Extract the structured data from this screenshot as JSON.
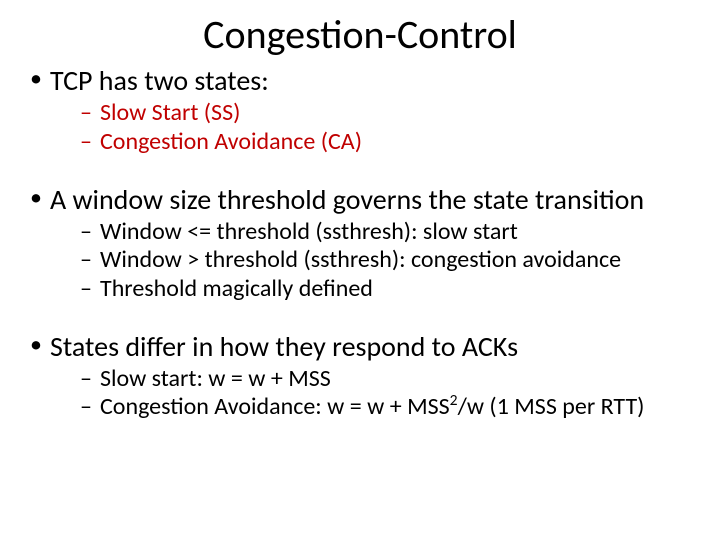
{
  "title": "Congestion-Control",
  "colors": {
    "title": "#000000",
    "body": "#000000",
    "accent": "#c00000",
    "background": "#ffffff"
  },
  "typography": {
    "font_family": "Calibri",
    "title_fontsize_pt": 40,
    "level1_fontsize_pt": 28,
    "level2_fontsize_pt": 24
  },
  "bullets": [
    {
      "text": "TCP has two states:",
      "color": "#000000",
      "sub": [
        {
          "text": " Slow Start (SS)",
          "color": "#c00000"
        },
        {
          "text": "Congestion Avoidance (CA)",
          "color": "#c00000"
        }
      ]
    },
    {
      "text": "A window size threshold governs the state transition",
      "color": "#000000",
      "sub": [
        {
          "text": "Window <= threshold (ssthresh): slow start",
          "color": "#000000"
        },
        {
          "text": "Window > threshold  (ssthresh): congestion avoidance",
          "color": "#000000"
        },
        {
          "text": "Threshold magically defined",
          "color": "#000000"
        }
      ]
    },
    {
      "text": "States differ in how they respond to ACKs",
      "color": "#000000",
      "sub": [
        {
          "text": "Slow start: w = w + MSS",
          "color": "#000000"
        },
        {
          "text_html": "Congestion Avoidance: w = w + MSS<span class=\"sup\">2</span>/w (1 MSS per RTT)",
          "color": "#000000"
        }
      ]
    }
  ]
}
